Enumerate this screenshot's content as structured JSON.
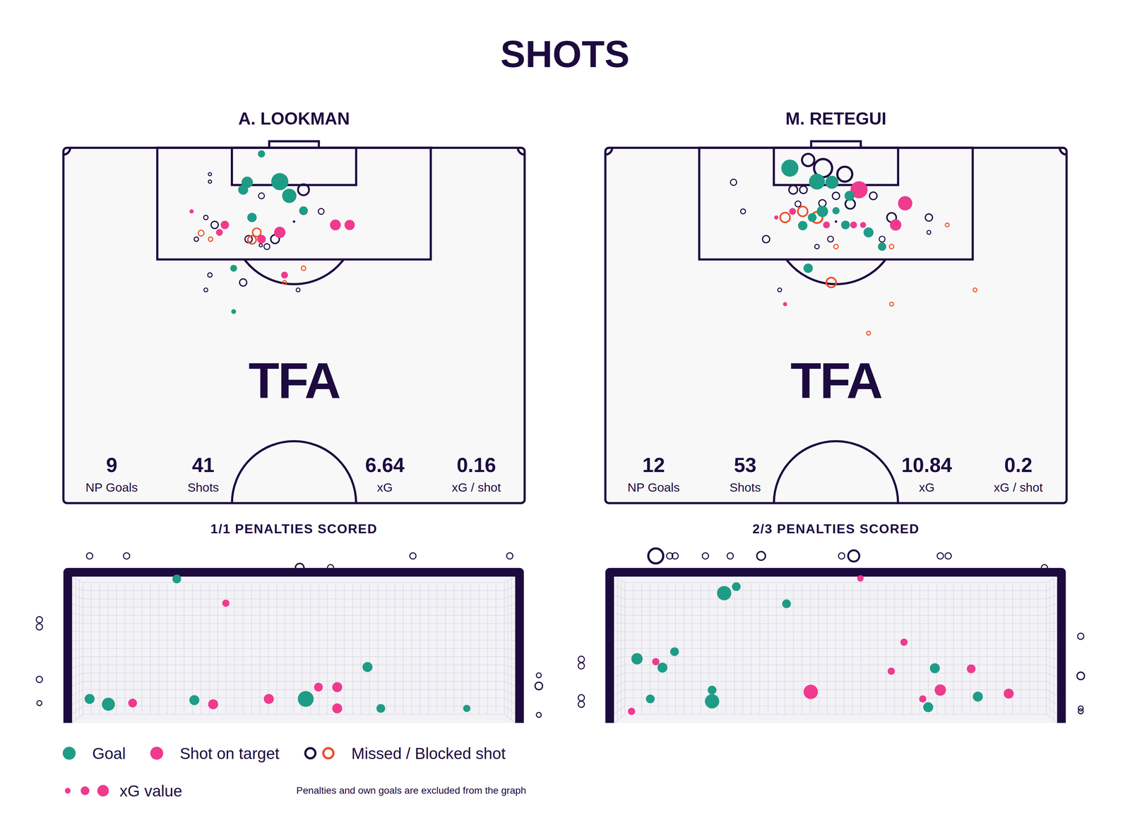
{
  "title": "SHOTS",
  "watermark": "TFA",
  "size_legend_label": "xG value",
  "footnote": "Penalties and own goals are excluded from the graph",
  "chart_data": [
    {
      "type": "scatter",
      "title": "A. LOOKMAN",
      "xlim": [
        0,
        68
      ],
      "ylim": [
        0,
        52.5
      ],
      "tick_labels": false,
      "legend": "bottom-left",
      "stats": [
        {
          "value": 9,
          "label": "NP Goals"
        },
        {
          "value": 41,
          "label": "Shots"
        },
        {
          "value": 6.64,
          "label": "xG"
        },
        {
          "value": 0.16,
          "label": "xG / shot"
        }
      ],
      "series": [
        {
          "name": "Goal",
          "color": "#1f9c86",
          "marker": "circle",
          "x": [
            29.2,
            27.1,
            31.9,
            26.5,
            33.3,
            35.4,
            27.8,
            25.1,
            25.1
          ],
          "values": [
            0.9,
            5.1,
            5.0,
            6.2,
            7.1,
            9.3,
            10.3,
            17.8,
            24.2
          ],
          "xg": [
            0.09,
            0.22,
            0.5,
            0.17,
            0.35,
            0.13,
            0.15,
            0.08,
            0.04
          ]
        },
        {
          "name": "Shot on target",
          "color": "#ef3a8e",
          "marker": "circle",
          "x": [
            18.9,
            23.8,
            23.0,
            29.2,
            31.9,
            40.1,
            42.2,
            32.6
          ],
          "values": [
            9.4,
            11.4,
            12.5,
            13.5,
            12.5,
            11.4,
            11.4,
            18.8
          ],
          "xg": [
            0.03,
            0.12,
            0.08,
            0.13,
            0.22,
            0.2,
            0.18,
            0.08
          ]
        },
        {
          "name": "Missed / Blocked shot",
          "marker": "ring",
          "colors": [
            "#1d0b3f",
            "#1d0b3f",
            "#1d0b3f",
            "#1d0b3f",
            "#1d0b3f",
            "#1d0b3f",
            "#1d0b3f",
            "#1d0b3f",
            "#ee4b24",
            "#ee4b24",
            "#1d0b3f",
            "#ee4b24",
            "#1d0b3f",
            "#ee4b24",
            "#1d0b3f",
            "#1d0b3f",
            "#1d0b3f",
            "#ee4b24",
            "#1d0b3f",
            "#1d0b3f",
            "#ee4b24",
            "#1d0b3f",
            "#1d0b3f"
          ],
          "x": [
            21.6,
            21.6,
            29.2,
            35.4,
            38.0,
            34.0,
            21.0,
            22.3,
            20.3,
            21.7,
            19.6,
            28.5,
            27.3,
            27.8,
            29.1,
            30.0,
            31.2,
            35.4,
            21.6,
            26.5,
            32.6,
            21.0,
            34.6
          ],
          "values": [
            3.9,
            5.0,
            7.1,
            6.2,
            9.4,
            10.9,
            10.3,
            11.4,
            12.6,
            13.5,
            13.5,
            12.5,
            13.5,
            13.6,
            14.4,
            14.6,
            13.5,
            17.8,
            18.8,
            19.9,
            19.9,
            21.0,
            21.0
          ],
          "xg": [
            0.03,
            0.03,
            0.08,
            0.28,
            0.08,
            0.01,
            0.05,
            0.12,
            0.08,
            0.05,
            0.05,
            0.16,
            0.12,
            0.16,
            0.03,
            0.08,
            0.17,
            0.05,
            0.05,
            0.12,
            0.04,
            0.04,
            0.04
          ]
        }
      ]
    },
    {
      "type": "scatter",
      "title": "1/1 PENALTIES SCORED",
      "xlim": [
        -0.8,
        8.12
      ],
      "ylim": [
        -0.1,
        3
      ],
      "tick_labels": false,
      "series": [
        {
          "name": "Goal",
          "color": "#1f9c86",
          "marker": "circle",
          "x": [
            1.73,
            4.88,
            0.29,
            0.6,
            2.02,
            3.86,
            5.1,
            6.52
          ],
          "values": [
            2.4,
            0.91,
            0.37,
            0.28,
            0.35,
            0.37,
            0.21,
            0.21
          ],
          "xg": [
            0.13,
            0.17,
            0.17,
            0.29,
            0.17,
            0.43,
            0.13,
            0.09
          ]
        },
        {
          "name": "Shot on target",
          "color": "#ef3a8e",
          "marker": "circle",
          "x": [
            2.54,
            4.07,
            4.38,
            0.29,
            1.0,
            2.33,
            3.25,
            4.38
          ],
          "values": [
            1.99,
            0.57,
            0.57,
            0.37,
            0.3,
            0.28,
            0.37,
            0.21
          ],
          "xg": [
            0.09,
            0.13,
            0.17,
            0.09,
            0.13,
            0.17,
            0.17,
            0.17
          ]
        },
        {
          "name": "Missed / Blocked shot",
          "color": "#1d0b3f",
          "marker": "ring",
          "x": [
            0.29,
            0.9,
            3.76,
            4.27,
            5.63,
            7.23,
            -0.54,
            -0.54,
            -0.54,
            -0.54,
            7.71,
            7.71,
            7.71
          ],
          "values": [
            2.79,
            2.79,
            2.59,
            2.59,
            2.79,
            2.79,
            1.71,
            1.59,
            0.7,
            0.3,
            0.77,
            0.59,
            0.1
          ],
          "xg": [
            0.09,
            0.09,
            0.17,
            0.09,
            0.09,
            0.09,
            0.09,
            0.09,
            0.09,
            0.06,
            0.06,
            0.13,
            0.06
          ]
        }
      ]
    },
    {
      "type": "scatter",
      "title": "M. RETEGUI",
      "xlim": [
        0,
        68
      ],
      "ylim": [
        0,
        52.5
      ],
      "tick_labels": false,
      "stats": [
        {
          "value": 12,
          "label": "NP Goals"
        },
        {
          "value": 53,
          "label": "Shots"
        },
        {
          "value": 10.84,
          "label": "xG"
        },
        {
          "value": 0.2,
          "label": "xG / shot"
        }
      ],
      "series": [
        {
          "name": "Goal",
          "color": "#1f9c86",
          "marker": "circle",
          "x": [
            27.2,
            31.2,
            33.4,
            36.0,
            32.0,
            34.0,
            30.5,
            29.1,
            35.4,
            38.8,
            40.8,
            29.9
          ],
          "values": [
            3.0,
            5.0,
            5.1,
            7.1,
            9.4,
            9.3,
            10.3,
            11.5,
            11.4,
            12.5,
            14.6,
            17.8
          ],
          "xg": [
            0.5,
            0.43,
            0.29,
            0.17,
            0.22,
            0.09,
            0.13,
            0.15,
            0.13,
            0.17,
            0.12,
            0.15
          ]
        },
        {
          "name": "Shot on target",
          "color": "#ef3a8e",
          "marker": "circle",
          "x": [
            37.4,
            44.2,
            25.2,
            27.6,
            32.6,
            36.6,
            38.0,
            42.8,
            26.5
          ],
          "values": [
            6.2,
            8.2,
            10.3,
            9.4,
            11.4,
            11.4,
            11.4,
            11.4,
            23.1
          ],
          "xg": [
            0.5,
            0.35,
            0.03,
            0.08,
            0.08,
            0.08,
            0.06,
            0.22,
            0.03
          ]
        },
        {
          "name": "Missed / Blocked shot",
          "marker": "ring",
          "colors": [
            "#1d0b3f",
            "#1d0b3f",
            "#1d0b3f",
            "#1d0b3f",
            "#1d0b3f",
            "#1d0b3f",
            "#1d0b3f",
            "#1d0b3f",
            "#1d0b3f",
            "#1d0b3f",
            "#1d0b3f",
            "#1d0b3f",
            "#ee4b24",
            "#ee4b24",
            "#ee4b24",
            "#1d0b3f",
            "#1d0b3f",
            "#1d0b3f",
            "#1d0b3f",
            "#ee4b24",
            "#1d0b3f",
            "#1d0b3f",
            "#1d0b3f",
            "#1d0b3f",
            "#ee4b24",
            "#ee4b24",
            "#ee4b24",
            "#1d0b3f",
            "#ee4b24",
            "#ee4b24",
            "#ee4b24"
          ],
          "x": [
            29.9,
            32.1,
            35.3,
            18.9,
            27.7,
            29.2,
            34.0,
            39.5,
            32.0,
            28.4,
            36.1,
            20.3,
            29.1,
            26.5,
            31.2,
            34.0,
            42.2,
            47.7,
            47.7,
            50.4,
            23.7,
            33.2,
            40.8,
            31.2,
            34.0,
            42.2,
            33.3,
            25.7,
            54.5,
            42.2,
            38.8
          ],
          "values": [
            1.8,
            3.0,
            3.9,
            5.1,
            6.2,
            6.2,
            7.1,
            7.1,
            8.2,
            8.3,
            8.3,
            9.4,
            9.4,
            10.3,
            10.3,
            10.9,
            10.3,
            10.3,
            12.5,
            11.4,
            13.5,
            13.5,
            13.5,
            14.6,
            14.6,
            14.6,
            19.9,
            21.0,
            21.0,
            23.1,
            27.4
          ],
          "xg": [
            0.35,
            0.7,
            0.5,
            0.09,
            0.17,
            0.13,
            0.12,
            0.13,
            0.12,
            0.08,
            0.22,
            0.06,
            0.22,
            0.22,
            0.28,
            0.01,
            0.2,
            0.12,
            0.04,
            0.04,
            0.12,
            0.08,
            0.08,
            0.05,
            0.05,
            0.05,
            0.22,
            0.04,
            0.04,
            0.04,
            0.04
          ]
        }
      ]
    },
    {
      "type": "scatter",
      "title": "2/3 PENALTIES SCORED",
      "xlim": [
        -0.8,
        8.12
      ],
      "ylim": [
        -0.1,
        3
      ],
      "tick_labels": false,
      "series": [
        {
          "name": "Goal",
          "color": "#1f9c86",
          "marker": "circle",
          "x": [
            1.82,
            2.02,
            2.85,
            0.38,
            0.8,
            1.0,
            5.3,
            0.6,
            1.62,
            1.62,
            5.19,
            6.01
          ],
          "values": [
            2.16,
            2.27,
            1.98,
            1.05,
            0.9,
            1.17,
            0.89,
            0.37,
            0.52,
            0.33,
            0.23,
            0.41
          ],
          "xg": [
            0.35,
            0.13,
            0.13,
            0.22,
            0.17,
            0.13,
            0.17,
            0.13,
            0.13,
            0.35,
            0.17,
            0.17
          ]
        },
        {
          "name": "Shot on target",
          "color": "#ef3a8e",
          "marker": "circle",
          "x": [
            4.07,
            4.79,
            0.69,
            4.58,
            5.9,
            3.25,
            5.39,
            5.1,
            6.52,
            0.29
          ],
          "values": [
            2.41,
            1.33,
            1.0,
            0.84,
            0.88,
            0.49,
            0.52,
            0.37,
            0.46,
            0.16
          ],
          "xg": [
            0.07,
            0.09,
            0.09,
            0.09,
            0.13,
            0.35,
            0.22,
            0.09,
            0.17,
            0.09
          ]
        },
        {
          "name": "Missed / Blocked shot",
          "color": "#1d0b3f",
          "marker": "ring",
          "x": [
            0.69,
            0.92,
            1.01,
            1.51,
            1.92,
            2.43,
            3.76,
            3.96,
            5.39,
            5.52,
            7.11,
            -0.54,
            -0.54,
            -0.54,
            -0.54,
            7.71,
            7.71,
            7.71,
            7.71
          ],
          "values": [
            2.79,
            2.79,
            2.79,
            2.79,
            2.79,
            2.79,
            2.79,
            2.79,
            2.79,
            2.79,
            2.59,
            1.04,
            0.93,
            0.39,
            0.28,
            1.43,
            0.76,
            0.21,
            0.16
          ],
          "xg": [
            0.5,
            0.09,
            0.09,
            0.09,
            0.09,
            0.17,
            0.09,
            0.29,
            0.09,
            0.09,
            0.09,
            0.09,
            0.09,
            0.09,
            0.09,
            0.09,
            0.13,
            0.06,
            0.06
          ]
        }
      ]
    }
  ]
}
